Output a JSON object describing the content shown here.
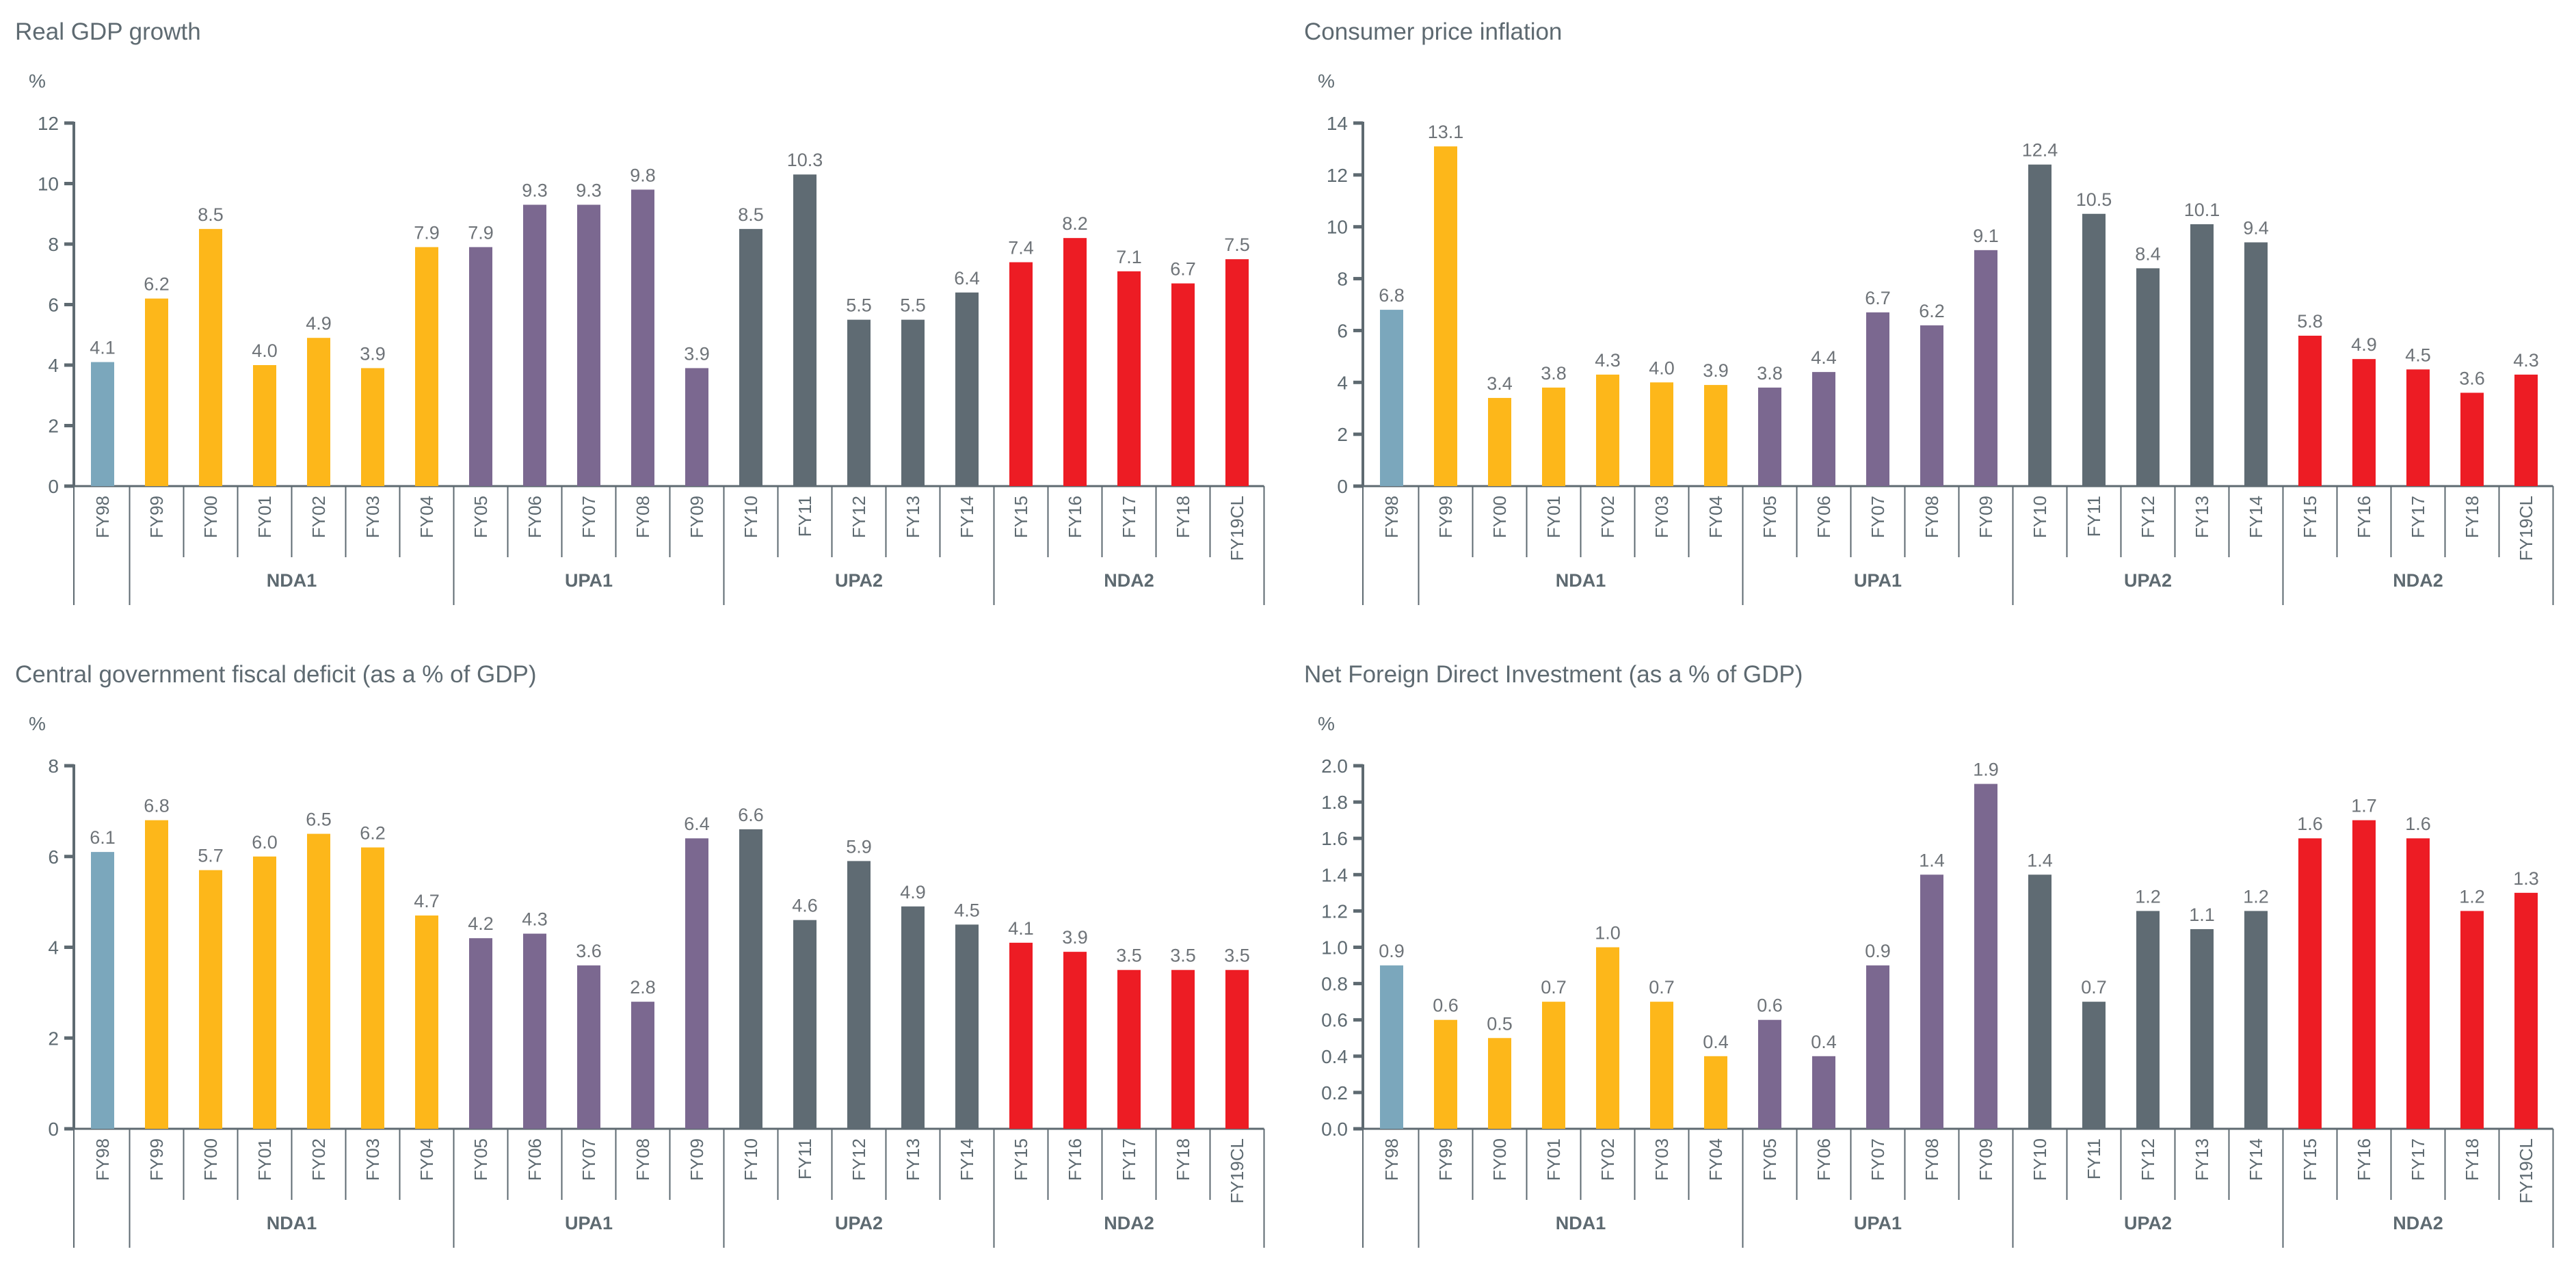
{
  "chart_data": [
    {
      "type": "bar",
      "title": "Real GDP growth",
      "ylabel": "%",
      "ylim": [
        0,
        12
      ],
      "ystep": 2,
      "tick_decimals": 0,
      "categories": [
        "FY98",
        "FY99",
        "FY00",
        "FY01",
        "FY02",
        "FY03",
        "FY04",
        "FY05",
        "FY06",
        "FY07",
        "FY08",
        "FY09",
        "FY10",
        "FY11",
        "FY12",
        "FY13",
        "FY14",
        "FY15",
        "FY16",
        "FY17",
        "FY18",
        "FY19CL"
      ],
      "values": [
        4.1,
        6.2,
        8.5,
        4.0,
        4.9,
        3.9,
        7.9,
        7.9,
        9.3,
        9.3,
        9.8,
        3.9,
        8.5,
        10.3,
        5.5,
        5.5,
        6.4,
        7.4,
        8.2,
        7.1,
        6.7,
        7.5
      ]
    },
    {
      "type": "bar",
      "title": "Consumer price inflation",
      "ylabel": "%",
      "ylim": [
        0,
        14
      ],
      "ystep": 2,
      "tick_decimals": 0,
      "categories": [
        "FY98",
        "FY99",
        "FY00",
        "FY01",
        "FY02",
        "FY03",
        "FY04",
        "FY05",
        "FY06",
        "FY07",
        "FY08",
        "FY09",
        "FY10",
        "FY11",
        "FY12",
        "FY13",
        "FY14",
        "FY15",
        "FY16",
        "FY17",
        "FY18",
        "FY19CL"
      ],
      "values": [
        6.8,
        13.1,
        3.4,
        3.8,
        4.3,
        4.0,
        3.9,
        3.8,
        4.4,
        6.7,
        6.2,
        9.1,
        12.4,
        10.5,
        8.4,
        10.1,
        9.4,
        5.8,
        4.9,
        4.5,
        3.6,
        4.3
      ]
    },
    {
      "type": "bar",
      "title": "Central government fiscal deficit (as a % of GDP)",
      "ylabel": "%",
      "ylim": [
        0,
        8
      ],
      "ystep": 2,
      "tick_decimals": 0,
      "categories": [
        "FY98",
        "FY99",
        "FY00",
        "FY01",
        "FY02",
        "FY03",
        "FY04",
        "FY05",
        "FY06",
        "FY07",
        "FY08",
        "FY09",
        "FY10",
        "FY11",
        "FY12",
        "FY13",
        "FY14",
        "FY15",
        "FY16",
        "FY17",
        "FY18",
        "FY19CL"
      ],
      "values": [
        6.1,
        6.8,
        5.7,
        6.0,
        6.5,
        6.2,
        4.7,
        4.2,
        4.3,
        3.6,
        2.8,
        6.4,
        6.6,
        4.6,
        5.9,
        4.9,
        4.5,
        4.1,
        3.9,
        3.5,
        3.5,
        3.5
      ]
    },
    {
      "type": "bar",
      "title": "Net Foreign Direct Investment (as a % of GDP)",
      "ylabel": "%",
      "ylim": [
        0,
        2.0
      ],
      "ystep": 0.2,
      "tick_decimals": 1,
      "categories": [
        "FY98",
        "FY99",
        "FY00",
        "FY01",
        "FY02",
        "FY03",
        "FY04",
        "FY05",
        "FY06",
        "FY07",
        "FY08",
        "FY09",
        "FY10",
        "FY11",
        "FY12",
        "FY13",
        "FY14",
        "FY15",
        "FY16",
        "FY17",
        "FY18",
        "FY19CL"
      ],
      "values": [
        0.9,
        0.6,
        0.5,
        0.7,
        1.0,
        0.7,
        0.4,
        0.6,
        0.4,
        0.9,
        1.4,
        1.9,
        1.4,
        0.7,
        1.2,
        1.1,
        1.2,
        1.6,
        1.7,
        1.6,
        1.2,
        1.3
      ]
    }
  ],
  "groups": [
    {
      "label": "",
      "start": 0,
      "end": 0,
      "color": "#7BA7BC"
    },
    {
      "label": "NDA1",
      "start": 1,
      "end": 6,
      "color": "#FDB71A"
    },
    {
      "label": "UPA1",
      "start": 7,
      "end": 11,
      "color": "#7B6890"
    },
    {
      "label": "UPA2",
      "start": 12,
      "end": 16,
      "color": "#5F6B73"
    },
    {
      "label": "NDA2",
      "start": 17,
      "end": 21,
      "color": "#ED1C24"
    }
  ],
  "axis_color": "#5E6A71"
}
